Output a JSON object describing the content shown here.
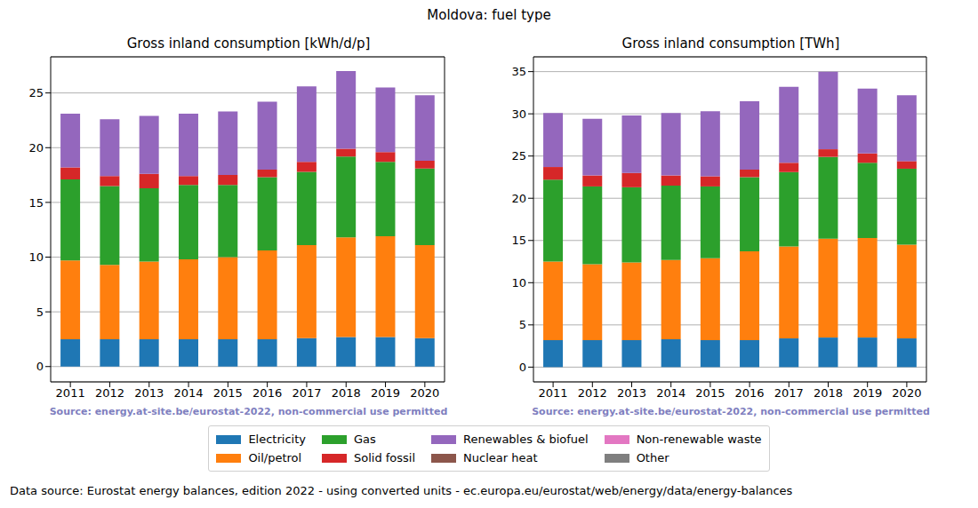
{
  "title": "Moldova: fuel type",
  "footer": "Data source: Eurostat energy balances, edition 2022 - using converted units - ec.europa.eu/eurostat/web/energy/data/energy-balances",
  "chart_data": [
    {
      "type": "bar",
      "title": "Gross inland consumption [kWh/d/p]",
      "annotations": [
        "Source: energy.at-site.be/eurostat-2022, non-commercial use permitted"
      ],
      "stacked": true,
      "grid": true,
      "legend": "bottom",
      "categories": [
        "2011",
        "2012",
        "2013",
        "2014",
        "2015",
        "2016",
        "2017",
        "2018",
        "2019",
        "2020"
      ],
      "ylim": [
        -1.4,
        28.3
      ],
      "yticks": [
        0,
        5,
        10,
        15,
        20,
        25
      ],
      "series": [
        {
          "name": "Electricity",
          "color": "#1f77b4",
          "values": [
            2.5,
            2.5,
            2.5,
            2.5,
            2.5,
            2.5,
            2.6,
            2.7,
            2.7,
            2.6
          ]
        },
        {
          "name": "Oil/petrol",
          "color": "#ff7f0e",
          "values": [
            7.2,
            6.8,
            7.1,
            7.3,
            7.5,
            8.1,
            8.5,
            9.1,
            9.2,
            8.5
          ]
        },
        {
          "name": "Gas",
          "color": "#2ca02c",
          "values": [
            7.4,
            7.2,
            6.7,
            6.8,
            6.6,
            6.7,
            6.7,
            7.4,
            6.8,
            7.0
          ]
        },
        {
          "name": "Solid fossil",
          "color": "#d62728",
          "values": [
            1.1,
            0.9,
            1.3,
            0.8,
            0.9,
            0.7,
            0.9,
            0.7,
            0.9,
            0.7
          ]
        },
        {
          "name": "Renewables & biofuel",
          "color": "#9467bd",
          "values": [
            4.9,
            5.2,
            5.3,
            5.7,
            5.8,
            6.2,
            6.9,
            7.1,
            5.9,
            6.0
          ]
        },
        {
          "name": "Nuclear heat",
          "color": "#8c564b",
          "values": [
            0,
            0,
            0,
            0,
            0,
            0,
            0,
            0,
            0,
            0
          ]
        },
        {
          "name": "Non-renewable waste",
          "color": "#e377c2",
          "values": [
            0,
            0,
            0,
            0,
            0,
            0,
            0,
            0,
            0,
            0
          ]
        },
        {
          "name": "Other",
          "color": "#7f7f7f",
          "values": [
            0,
            0,
            0,
            0,
            0,
            0,
            0,
            0,
            0,
            0
          ]
        }
      ]
    },
    {
      "type": "bar",
      "title": "Gross inland consumption [TWh]",
      "annotations": [
        "Source: energy.at-site.be/eurostat-2022, non-commercial use permitted"
      ],
      "stacked": true,
      "grid": true,
      "legend": "bottom",
      "categories": [
        "2011",
        "2012",
        "2013",
        "2014",
        "2015",
        "2016",
        "2017",
        "2018",
        "2019",
        "2020"
      ],
      "ylim": [
        -1.75,
        36.75
      ],
      "yticks": [
        0,
        5,
        10,
        15,
        20,
        25,
        30,
        35
      ],
      "series": [
        {
          "name": "Electricity",
          "color": "#1f77b4",
          "values": [
            3.2,
            3.2,
            3.2,
            3.3,
            3.2,
            3.2,
            3.4,
            3.5,
            3.5,
            3.4
          ]
        },
        {
          "name": "Oil/petrol",
          "color": "#ff7f0e",
          "values": [
            9.3,
            9.0,
            9.2,
            9.4,
            9.7,
            10.5,
            10.9,
            11.7,
            11.8,
            11.1
          ]
        },
        {
          "name": "Gas",
          "color": "#2ca02c",
          "values": [
            9.7,
            9.2,
            8.9,
            8.8,
            8.5,
            8.8,
            8.8,
            9.7,
            8.9,
            9.0
          ]
        },
        {
          "name": "Solid fossil",
          "color": "#d62728",
          "values": [
            1.5,
            1.3,
            1.7,
            1.2,
            1.2,
            0.9,
            1.1,
            0.9,
            1.1,
            0.9
          ]
        },
        {
          "name": "Renewables & biofuel",
          "color": "#9467bd",
          "values": [
            6.4,
            6.7,
            6.8,
            7.4,
            7.7,
            8.1,
            9.0,
            9.2,
            7.7,
            7.8
          ]
        },
        {
          "name": "Nuclear heat",
          "color": "#8c564b",
          "values": [
            0,
            0,
            0,
            0,
            0,
            0,
            0,
            0,
            0,
            0
          ]
        },
        {
          "name": "Non-renewable waste",
          "color": "#e377c2",
          "values": [
            0,
            0,
            0,
            0,
            0,
            0,
            0,
            0,
            0,
            0
          ]
        },
        {
          "name": "Other",
          "color": "#7f7f7f",
          "values": [
            0,
            0,
            0,
            0,
            0,
            0,
            0,
            0,
            0,
            0
          ]
        }
      ]
    }
  ]
}
